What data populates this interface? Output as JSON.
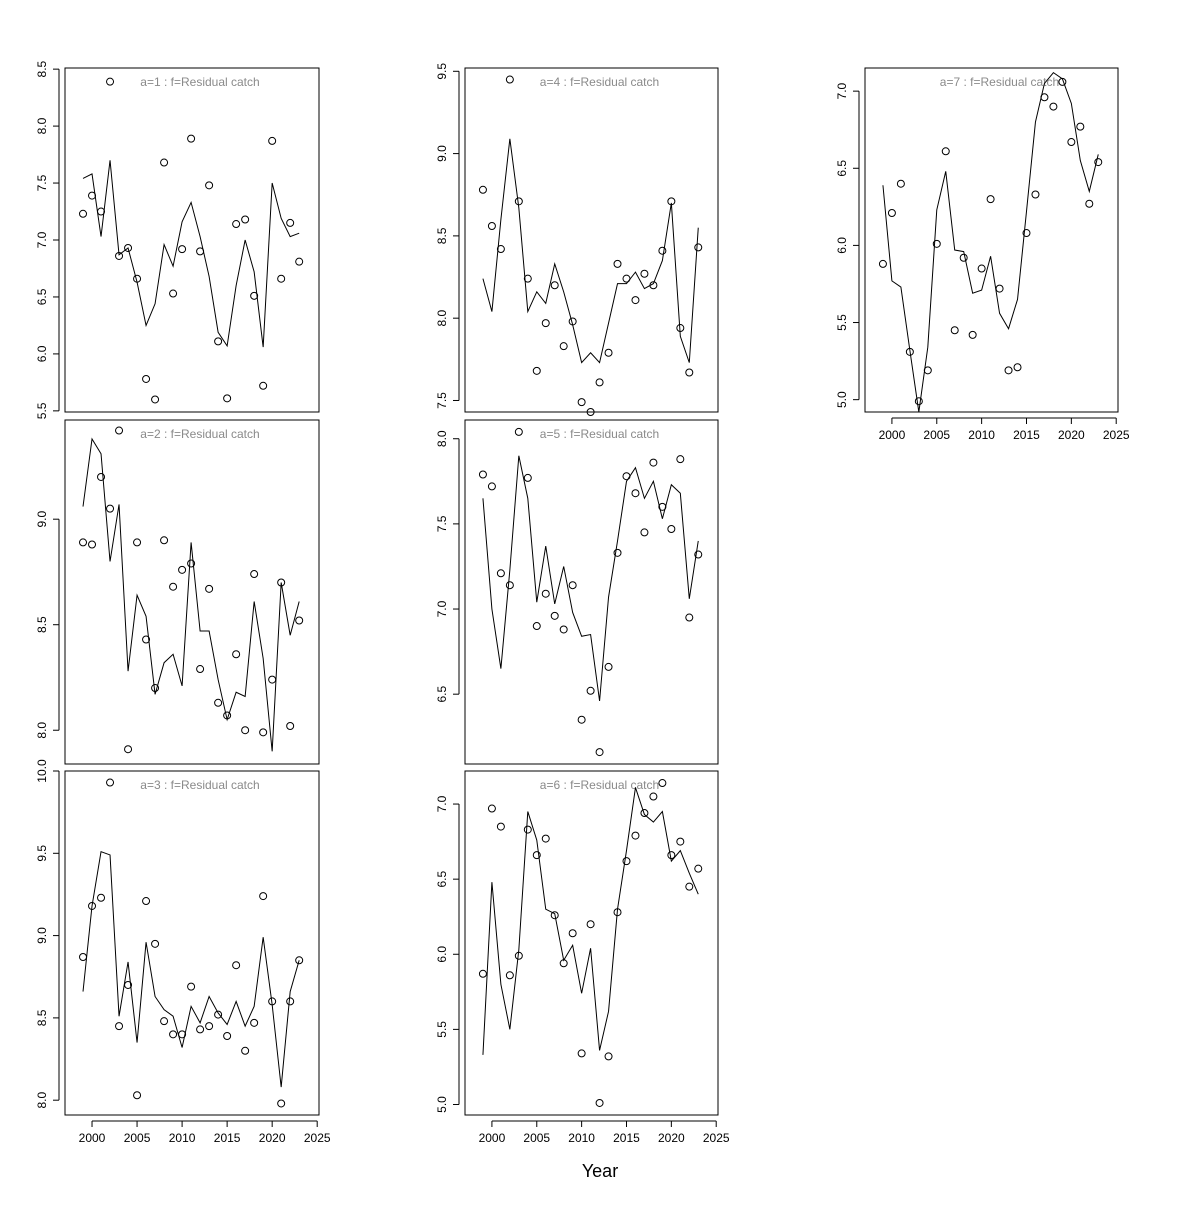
{
  "xlabel": "Year",
  "chart_data": [
    {
      "type": "line",
      "title": "a=1  :  f=Residual catch",
      "x": [
        1999,
        2000,
        2001,
        2002,
        2003,
        2004,
        2005,
        2006,
        2007,
        2008,
        2009,
        2010,
        2011,
        2012,
        2013,
        2014,
        2015,
        2016,
        2017,
        2018,
        2019,
        2020,
        2021,
        2022,
        2023
      ],
      "xlim": [
        1997,
        2025.2
      ],
      "ylim": [
        5.49,
        8.51
      ],
      "yticks": [
        5.5,
        {
          "value": 6,
          "label": "6.0"
        },
        6.5,
        {
          "value": 7,
          "label": "7.0"
        },
        7.5,
        {
          "value": 8,
          "label": "8.0"
        },
        8.5
      ],
      "series": [
        {
          "mark": "line",
          "color": "#000000",
          "values": [
            7.54,
            7.58,
            7.03,
            7.7,
            6.87,
            6.93,
            6.63,
            6.25,
            6.44,
            6.96,
            6.77,
            7.16,
            7.33,
            7.03,
            6.68,
            6.19,
            6.07,
            6.6,
            7.0,
            6.72,
            6.06,
            7.5,
            7.19,
            7.03,
            7.06
          ]
        },
        {
          "mark": "points",
          "color": "#000000",
          "values": [
            7.23,
            7.39,
            7.25,
            8.39,
            6.86,
            6.93,
            6.66,
            5.78,
            5.6,
            7.68,
            6.53,
            6.92,
            7.89,
            6.9,
            7.48,
            6.11,
            5.61,
            7.14,
            7.18,
            6.51,
            5.72,
            7.87,
            6.66,
            7.15,
            6.81
          ]
        }
      ]
    },
    {
      "type": "line",
      "title": "a=2  :  f=Residual catch",
      "x": [
        1999,
        2000,
        2001,
        2002,
        2003,
        2004,
        2005,
        2006,
        2007,
        2008,
        2009,
        2010,
        2011,
        2012,
        2013,
        2014,
        2015,
        2016,
        2017,
        2018,
        2019,
        2020,
        2021,
        2022,
        2023
      ],
      "xlim": [
        1997,
        2025.2
      ],
      "ylim": [
        7.84,
        9.47
      ],
      "yticks": [
        {
          "value": 8,
          "label": "8.0"
        },
        8.5,
        {
          "value": 9,
          "label": "9.0"
        }
      ],
      "series": [
        {
          "mark": "line",
          "color": "#000000",
          "values": [
            9.06,
            9.38,
            9.31,
            8.8,
            9.07,
            8.28,
            8.64,
            8.54,
            8.17,
            8.32,
            8.36,
            8.21,
            8.89,
            8.47,
            8.47,
            8.24,
            8.05,
            8.18,
            8.16,
            8.61,
            8.34,
            7.9,
            8.7,
            8.45,
            8.61
          ]
        },
        {
          "mark": "points",
          "color": "#000000",
          "values": [
            8.89,
            8.88,
            9.2,
            9.05,
            9.42,
            7.91,
            8.89,
            8.43,
            8.2,
            8.9,
            8.68,
            8.76,
            8.79,
            8.29,
            8.67,
            8.13,
            8.07,
            8.36,
            8.0,
            8.74,
            7.99,
            8.24,
            8.7,
            8.02,
            8.52
          ]
        }
      ]
    },
    {
      "type": "line",
      "title": "a=3  :  f=Residual catch",
      "x": [
        1999,
        2000,
        2001,
        2002,
        2003,
        2004,
        2005,
        2006,
        2007,
        2008,
        2009,
        2010,
        2011,
        2012,
        2013,
        2014,
        2015,
        2016,
        2017,
        2018,
        2019,
        2020,
        2021,
        2022,
        2023
      ],
      "xlim": [
        1997,
        2025.2
      ],
      "ylim": [
        7.91,
        10.0
      ],
      "xticks": [
        2000,
        2005,
        2010,
        2015,
        2020,
        2025
      ],
      "yticks": [
        {
          "value": 8,
          "label": "8.0"
        },
        8.5,
        {
          "value": 9,
          "label": "9.0"
        },
        9.5,
        {
          "value": 10,
          "label": "10.0"
        }
      ],
      "series": [
        {
          "mark": "line",
          "color": "#000000",
          "values": [
            8.66,
            9.18,
            9.51,
            9.49,
            8.51,
            8.84,
            8.35,
            8.96,
            8.63,
            8.55,
            8.51,
            8.32,
            8.57,
            8.47,
            8.63,
            8.53,
            8.46,
            8.6,
            8.45,
            8.57,
            8.99,
            8.58,
            8.08,
            8.66,
            8.85
          ]
        },
        {
          "mark": "points",
          "color": "#000000",
          "values": [
            8.87,
            9.18,
            9.23,
            9.93,
            8.45,
            8.7,
            8.03,
            9.21,
            8.95,
            8.48,
            8.4,
            8.4,
            8.69,
            8.43,
            8.45,
            8.52,
            8.39,
            8.82,
            8.3,
            8.47,
            9.24,
            8.6,
            7.98,
            8.6,
            8.85
          ]
        }
      ]
    },
    {
      "type": "line",
      "title": "a=4  :  f=Residual catch",
      "x": [
        1999,
        2000,
        2001,
        2002,
        2003,
        2004,
        2005,
        2006,
        2007,
        2008,
        2009,
        2010,
        2011,
        2012,
        2013,
        2014,
        2015,
        2016,
        2017,
        2018,
        2019,
        2020,
        2021,
        2022,
        2023
      ],
      "xlim": [
        1997,
        2025.2
      ],
      "ylim": [
        7.43,
        9.52
      ],
      "yticks": [
        7.5,
        {
          "value": 8,
          "label": "8.0"
        },
        8.5,
        {
          "value": 9,
          "label": "9.0"
        },
        9.5
      ],
      "series": [
        {
          "mark": "line",
          "color": "#000000",
          "values": [
            8.24,
            8.04,
            8.6,
            9.09,
            8.67,
            8.04,
            8.16,
            8.09,
            8.33,
            8.16,
            7.96,
            7.73,
            7.79,
            7.73,
            7.97,
            8.21,
            8.21,
            8.28,
            8.18,
            8.21,
            8.35,
            8.7,
            7.89,
            7.73,
            8.55
          ]
        },
        {
          "mark": "points",
          "color": "#000000",
          "values": [
            8.78,
            8.56,
            8.42,
            9.45,
            8.71,
            8.24,
            7.68,
            7.97,
            8.2,
            7.83,
            7.98,
            7.49,
            7.43,
            7.61,
            7.79,
            8.33,
            8.24,
            8.11,
            8.27,
            8.2,
            8.41,
            8.71,
            7.94,
            7.67,
            8.43
          ]
        }
      ]
    },
    {
      "type": "line",
      "title": "a=5  :  f=Residual catch",
      "x": [
        1999,
        2000,
        2001,
        2002,
        2003,
        2004,
        2005,
        2006,
        2007,
        2008,
        2009,
        2010,
        2011,
        2012,
        2013,
        2014,
        2015,
        2016,
        2017,
        2018,
        2019,
        2020,
        2021,
        2022,
        2023
      ],
      "xlim": [
        1997,
        2025.2
      ],
      "ylim": [
        6.09,
        8.11
      ],
      "yticks": [
        6.5,
        {
          "value": 7,
          "label": "7.0"
        },
        7.5,
        {
          "value": 8,
          "label": "8.0"
        }
      ],
      "series": [
        {
          "mark": "line",
          "color": "#000000",
          "values": [
            7.65,
            7.0,
            6.65,
            7.23,
            7.9,
            7.65,
            7.04,
            7.37,
            7.03,
            7.25,
            6.98,
            6.84,
            6.85,
            6.46,
            7.07,
            7.4,
            7.75,
            7.83,
            7.65,
            7.75,
            7.53,
            7.73,
            7.68,
            7.06,
            7.4
          ]
        },
        {
          "mark": "points",
          "color": "#000000",
          "values": [
            7.79,
            7.72,
            7.21,
            7.14,
            8.04,
            7.77,
            6.9,
            7.09,
            6.96,
            6.88,
            7.14,
            6.35,
            6.52,
            6.16,
            6.66,
            7.33,
            7.78,
            7.68,
            7.45,
            7.86,
            7.6,
            7.47,
            7.88,
            6.95,
            7.32
          ]
        }
      ]
    },
    {
      "type": "line",
      "title": "a=6  :  f=Residual catch",
      "x": [
        1999,
        2000,
        2001,
        2002,
        2003,
        2004,
        2005,
        2006,
        2007,
        2008,
        2009,
        2010,
        2011,
        2012,
        2013,
        2014,
        2015,
        2016,
        2017,
        2018,
        2019,
        2020,
        2021,
        2022,
        2023
      ],
      "xlim": [
        1997,
        2025.2
      ],
      "ylim": [
        4.93,
        7.22
      ],
      "xticks": [
        2000,
        2005,
        2010,
        2015,
        2020,
        2025
      ],
      "yticks": [
        {
          "value": 5,
          "label": "5.0"
        },
        5.5,
        {
          "value": 6,
          "label": "6.0"
        },
        6.5,
        {
          "value": 7,
          "label": "7.0"
        }
      ],
      "series": [
        {
          "mark": "line",
          "color": "#000000",
          "values": [
            5.33,
            6.48,
            5.8,
            5.5,
            6.03,
            6.95,
            6.76,
            6.3,
            6.27,
            5.96,
            6.06,
            5.74,
            6.04,
            5.36,
            5.62,
            6.3,
            6.69,
            7.11,
            6.93,
            6.88,
            6.95,
            6.62,
            6.69,
            6.54,
            6.4
          ]
        },
        {
          "mark": "points",
          "color": "#000000",
          "values": [
            5.87,
            6.97,
            6.85,
            5.86,
            5.99,
            6.83,
            6.66,
            6.77,
            6.26,
            5.94,
            6.14,
            5.34,
            6.2,
            5.01,
            5.32,
            6.28,
            6.62,
            6.79,
            6.94,
            7.05,
            7.14,
            6.66,
            6.75,
            6.45,
            6.57
          ]
        }
      ]
    },
    {
      "type": "line",
      "title": "a=7  :  f=Residual catch",
      "x": [
        1999,
        2000,
        2001,
        2002,
        2003,
        2004,
        2005,
        2006,
        2007,
        2008,
        2009,
        2010,
        2011,
        2012,
        2013,
        2014,
        2015,
        2016,
        2017,
        2018,
        2019,
        2020,
        2021,
        2022,
        2023
      ],
      "xlim": [
        1997,
        2025.2
      ],
      "ylim": [
        4.92,
        7.15
      ],
      "xticks": [
        2000,
        2005,
        2010,
        2015,
        2020,
        2025
      ],
      "yticks": [
        {
          "value": 5,
          "label": "5.0"
        },
        5.5,
        {
          "value": 6,
          "label": "6.0"
        },
        6.5,
        {
          "value": 7,
          "label": "7.0"
        }
      ],
      "series": [
        {
          "mark": "line",
          "color": "#000000",
          "values": [
            6.39,
            5.77,
            5.73,
            5.32,
            4.92,
            5.34,
            6.23,
            6.48,
            5.97,
            5.96,
            5.69,
            5.71,
            5.93,
            5.56,
            5.46,
            5.65,
            6.22,
            6.8,
            7.05,
            7.12,
            7.08,
            6.92,
            6.55,
            6.35,
            6.59
          ]
        },
        {
          "mark": "points",
          "color": "#000000",
          "values": [
            5.88,
            6.21,
            6.4,
            5.31,
            4.99,
            5.19,
            6.01,
            6.61,
            5.45,
            5.92,
            5.42,
            5.85,
            6.3,
            5.72,
            5.19,
            5.21,
            6.08,
            6.33,
            6.96,
            6.9,
            7.06,
            6.67,
            6.77,
            6.27,
            6.54
          ]
        }
      ]
    }
  ]
}
